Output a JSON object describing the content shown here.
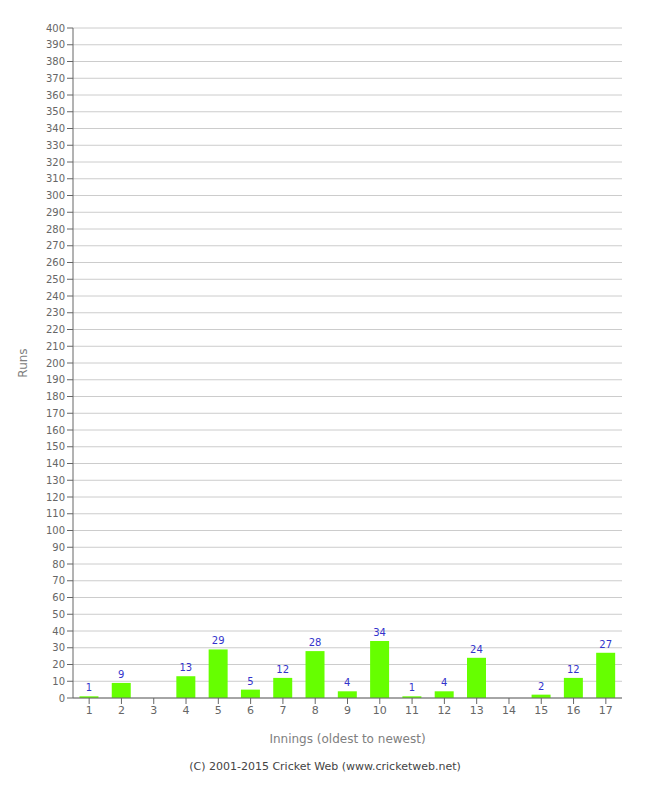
{
  "chart_data": {
    "type": "bar",
    "categories": [
      "1",
      "2",
      "3",
      "4",
      "5",
      "6",
      "7",
      "8",
      "9",
      "10",
      "11",
      "12",
      "13",
      "14",
      "15",
      "16",
      "17"
    ],
    "values": [
      1,
      9,
      0,
      13,
      29,
      5,
      12,
      28,
      4,
      34,
      1,
      4,
      24,
      0,
      2,
      12,
      27
    ],
    "color": "#66ff00",
    "x_label": "Innings (oldest to newest)",
    "y_label": "Runs",
    "ylim": [
      0,
      400
    ],
    "yticks": [
      0,
      10,
      20,
      30,
      40,
      50,
      60,
      70,
      80,
      90,
      100,
      110,
      120,
      130,
      140,
      150,
      160,
      170,
      180,
      190,
      200,
      210,
      220,
      230,
      240,
      250,
      260,
      270,
      280,
      290,
      300,
      310,
      320,
      330,
      340,
      350,
      360,
      370,
      380,
      390,
      400
    ],
    "grid": true,
    "data_labels": true,
    "annotations": [
      "(C) 2001-2015 Cricket Web (www.cricketweb.net)"
    ]
  }
}
